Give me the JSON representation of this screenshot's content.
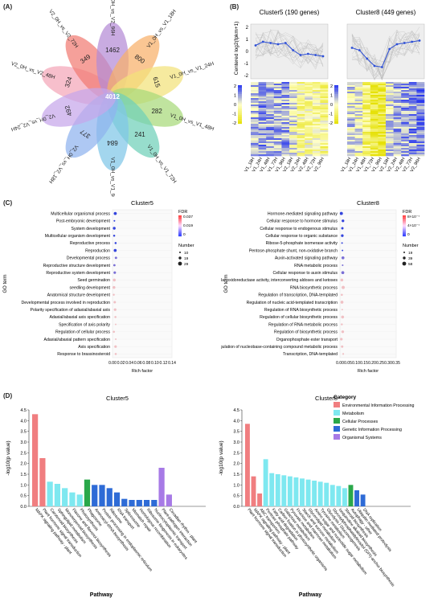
{
  "panels": {
    "a": "(A)",
    "b": "(B)",
    "c": "(C)",
    "d": "(D)"
  },
  "venn": {
    "center": "4012",
    "petals": [
      {
        "label": "V2_0H_vs_V2_48H",
        "value": "324",
        "color": "#f4a6b8"
      },
      {
        "label": "V2_0H_vs_V2_72H",
        "value": "349",
        "color": "#f17c73"
      },
      {
        "label": "V2_0H_vs_V2_96H",
        "value": "1462",
        "color": "#b48ad6"
      },
      {
        "label": "V1_0H_vs_V1_18H",
        "value": "800",
        "color": "#f8b06a"
      },
      {
        "label": "V1_0H_vs_V1_24H",
        "value": "615",
        "color": "#f3e27a"
      },
      {
        "label": "V1_0H_vs_V1_48H",
        "value": "282",
        "color": "#a7d97a"
      },
      {
        "label": "V1_0H_vs_V1_72H",
        "value": "241",
        "color": "#6fd0b8"
      },
      {
        "label": "V1_0H_vs_V1_96H",
        "value": "684",
        "color": "#7fc6e8"
      },
      {
        "label": "V2_0H_vs_V2_18H",
        "value": "377",
        "color": "#8fb3ee"
      },
      {
        "label": "V2_0H_vs_V2_24H",
        "value": "492",
        "color": "#c6a6ea"
      }
    ]
  },
  "clusters": {
    "ylabel": "Centered log2(fpkm+1)",
    "samples": [
      "V1_18H",
      "V1_24H",
      "V1_48H",
      "V1_72H",
      "V1_96H",
      "V2_18H",
      "V2_24H",
      "V2_48H",
      "V2_72H",
      "V2_96H"
    ],
    "left": {
      "title": "Cluster5 (190 genes)",
      "profile": [
        0.5,
        0.8,
        0.7,
        0.6,
        0.7,
        0.1,
        -0.3,
        -0.2,
        -0.3,
        -0.4
      ]
    },
    "right": {
      "title": "Cluster8 (449 genes)",
      "profile": [
        0.3,
        0.1,
        -0.6,
        -1.2,
        -1.3,
        0.2,
        0.6,
        0.7,
        0.8,
        0.9
      ]
    },
    "yticks": [
      "2",
      "1",
      "0",
      "-1",
      "-2"
    ],
    "colorbar_ticks": [
      "2",
      "1",
      "0",
      "-1",
      "-2"
    ]
  },
  "go": {
    "axis_label": "GO term",
    "x_label": "Rich factor",
    "left": {
      "title": "Cluster5",
      "terms": [
        "Multicellular organismal process",
        "Post-embryonic development",
        "System development",
        "Multicellular organism development",
        "Reproductive process",
        "Reproduction",
        "Developmental process",
        "Reproductive structure development",
        "Reproductive system development",
        "Seed germination",
        "seedling development",
        "Anatomical structure development",
        "Developmental process involved in reproduction",
        "Polarity specification of adaxial/abaxial axis",
        "Adaxial/abaxial axis specification",
        "Specification of axis polarity",
        "Regulation of cellular process",
        "Adaxial/abaxial pattern specification",
        "Axis specification",
        "Response to brassinosteroid"
      ],
      "xticks": [
        "0.00",
        "0.02",
        "0.04",
        "0.06",
        "0.08",
        "0.10",
        "0.12",
        "0.14"
      ],
      "fdr_title": "FDR",
      "fdr_ticks": [
        "0.037",
        "0.019",
        "0"
      ],
      "size_title": "Number",
      "size_ticks": [
        "10",
        "19",
        "29"
      ]
    },
    "right": {
      "title": "Cluster8",
      "terms": [
        "Hormone-mediated signaling pathway",
        "Cellular response to hormone stimulus",
        "Cellular response to endogenous stimulus",
        "Cellular response to organic substance",
        "Ribose-5-phosphate isomerase activity",
        "Pentose-phosphate shunt, non-oxidative branch",
        "Auxin-activated signaling pathway",
        "RNA metabolic process",
        "Cellular response to auxin stimulus",
        "Intramolecular oxidoreductase activity, interconverting aldoses and ketoses",
        "RNA biosynthetic process",
        "Regulation of transcription, DNA-templated",
        "Regulation of nucleic acid-templated transcription",
        "Regulation of RNA biosynthetic process",
        "Regulation of cellular biosynthetic process",
        "Regulation of RNA metabolic process",
        "Regulation of biosynthetic process",
        "Organophosphate ester transport",
        "Regulation of nucleobase-containing compound metabolic process",
        "Transcription, DNA-templated"
      ],
      "xticks": [
        "0.00",
        "0.05",
        "0.10",
        "0.15",
        "0.20",
        "0.25",
        "0.30",
        "0.35"
      ],
      "fdr_title": "FDR",
      "fdr_ticks": [
        "8×10⁻⁷",
        "4×10⁻⁷",
        "0"
      ],
      "size_title": "Number",
      "size_ticks": [
        "19",
        "39",
        "58"
      ]
    }
  },
  "kegg": {
    "y_label": "-log10(p value)",
    "x_label": "Pathway",
    "legend_title": "Category",
    "categories": [
      {
        "name": "Environmental Information Processing",
        "color": "#f07e80"
      },
      {
        "name": "Metabolism",
        "color": "#7ee8f0"
      },
      {
        "name": "Cellular Processes",
        "color": "#2aa84a"
      },
      {
        "name": "Genetic Information Processing",
        "color": "#2e6bd6"
      },
      {
        "name": "Organismal Systems",
        "color": "#a77ae6"
      }
    ],
    "left": {
      "title": "Cluster5",
      "yticks": [
        "0.0",
        "0.5",
        "1.0",
        "1.5",
        "2.0",
        "2.5",
        "3.0",
        "3.5",
        "4.0",
        "4.5"
      ],
      "values": [
        4.3,
        2.25,
        1.15,
        1.05,
        0.85,
        0.65,
        0.55,
        1.25,
        1.0,
        1.0,
        0.85,
        0.65,
        0.35,
        0.3,
        0.3,
        0.3,
        0.3,
        1.8,
        0.55
      ],
      "cats": [
        0,
        0,
        1,
        1,
        1,
        1,
        1,
        2,
        3,
        3,
        3,
        3,
        3,
        3,
        3,
        3,
        3,
        4,
        4
      ],
      "labels": [
        "MAPK signaling pathway - plant",
        "Plant hormone signal transduction",
        "Carotenoid biosynthesis",
        "Sphingolipid metabolism",
        "Monoterpenoid biosynthesis",
        "Flavone and flavonol biosynthesis",
        "Photosynthesis",
        "Phagosome",
        "Aminoacyl-tRNA biosynthesis",
        "Protein processing in endoplasmic reticulum",
        "Ribosome",
        "RNA transport",
        "Spliceosome",
        "Mismatch repair",
        "Homologous recombination",
        "Ribosome biogenesis in eukaryotes",
        "Nucleocytoplasmic transport",
        "Plant-pathogen interaction",
        "Circadian rhythm - plant"
      ]
    },
    "right": {
      "title": "Cluster8",
      "yticks": [
        "0.0",
        "0.5",
        "1.0",
        "1.5",
        "2.0",
        "2.5",
        "3.0",
        "3.5",
        "4.0",
        "4.5"
      ],
      "values": [
        3.85,
        1.4,
        0.6,
        2.2,
        1.55,
        1.5,
        1.45,
        1.4,
        1.35,
        1.3,
        1.25,
        1.2,
        1.15,
        1.1,
        1.0,
        0.95,
        0.85,
        1.0,
        0.75,
        0.55
      ],
      "cats": [
        0,
        0,
        0,
        1,
        1,
        1,
        1,
        1,
        1,
        1,
        1,
        1,
        1,
        1,
        1,
        1,
        1,
        2,
        3,
        3
      ],
      "labels": [
        "Plant hormone signal transduction",
        "MAPK signaling pathway - plant",
        "ABC transporters",
        "Pentose phosphate pathway",
        "Fatty acid degradation",
        "Carbon fixation in photosynthetic organisms",
        "Galactose metabolism",
        "Pyruvate metabolism",
        "Fructose and mannose metabolism",
        "Starch and sucrose metabolism",
        "Glycerolipid metabolism",
        "Amino sugar and nucleotide sugar metabolism",
        "Tyrosine metabolism",
        "Glycolysis / Gluconeogenesis",
        "Glycosylphosphatidylinositol (GPI)-anchor biosynthesis",
        "Isoquinoline alkaloid biosynthesis",
        "Steroid biosynthesis",
        "Autophagy - other",
        "Ubiquitin mediated proteolysis",
        "DNA replication"
      ]
    }
  }
}
